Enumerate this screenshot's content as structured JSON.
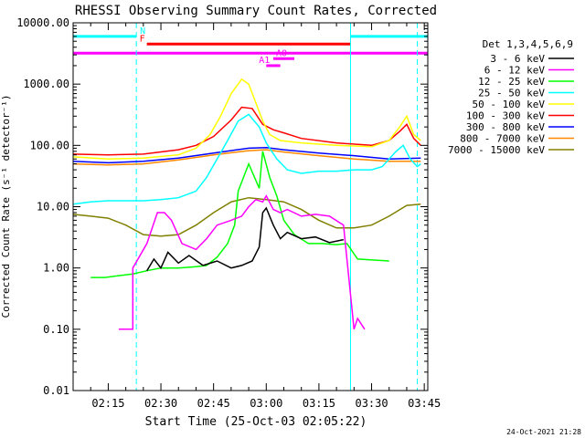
{
  "chart_data": {
    "type": "line",
    "title": "RHESSI Observing Summary Count Rates, Corrected",
    "xlabel": "Start Time (25-Oct-03 02:05:22)",
    "ylabel": "Corrected Count Rate (s⁻¹ detector⁻¹)",
    "yscale": "log",
    "ylim": [
      0.01,
      10000
    ],
    "xlim": [
      "02:05",
      "03:46"
    ],
    "x_ticks": [
      "02:15",
      "02:30",
      "02:45",
      "03:00",
      "03:15",
      "03:30",
      "03:45"
    ],
    "y_ticks": [
      "0.01",
      "0.10",
      "1.00",
      "10.00",
      "100.00",
      "1000.00",
      "10000.00"
    ],
    "legend_title": "Det 1,3,4,5,6,9",
    "legend_position": "right",
    "footer_date": "24-Oct-2021 21:28",
    "grid": false,
    "series": [
      {
        "name": "3 - 6 keV",
        "color": "#000000",
        "x": [
          "02:26",
          "02:28",
          "02:30",
          "02:32",
          "02:35",
          "02:38",
          "02:42",
          "02:46",
          "02:50",
          "02:53",
          "02:56",
          "02:58",
          "02:59",
          "03:00",
          "03:02",
          "03:04",
          "03:06",
          "03:10",
          "03:14",
          "03:18",
          "03:22"
        ],
        "values": [
          0.9,
          1.4,
          1.0,
          1.8,
          1.2,
          1.6,
          1.1,
          1.3,
          1.0,
          1.1,
          1.3,
          2.2,
          8.0,
          9.5,
          5.0,
          3.0,
          3.8,
          3.0,
          3.2,
          2.6,
          2.9
        ]
      },
      {
        "name": "6 - 12 keV",
        "color": "#ff00ff",
        "x": [
          "02:18",
          "02:22",
          "02:22",
          "02:26",
          "02:29",
          "02:31",
          "02:33",
          "02:36",
          "02:40",
          "02:43",
          "02:46",
          "02:50",
          "02:53",
          "02:55",
          "02:57",
          "02:59",
          "03:00",
          "03:02",
          "03:04",
          "03:06",
          "03:10",
          "03:14",
          "03:18",
          "03:22",
          "03:25",
          "03:26",
          "03:28"
        ],
        "values": [
          0.1,
          0.1,
          1.0,
          2.5,
          8.0,
          8.0,
          6.0,
          2.5,
          2.0,
          3.0,
          5.0,
          6.0,
          7.0,
          10.0,
          13.0,
          12.0,
          15.0,
          9.0,
          8.0,
          9.0,
          7.0,
          7.5,
          7.0,
          5.0,
          0.1,
          0.15,
          0.1
        ]
      },
      {
        "name": "12 - 25 keV",
        "color": "#00ff00",
        "x": [
          "02:10",
          "02:14",
          "02:18",
          "02:22",
          "02:26",
          "02:30",
          "02:35",
          "02:40",
          "02:43",
          "02:46",
          "02:49",
          "02:51",
          "02:52",
          "02:55",
          "02:58",
          "02:59",
          "03:01",
          "03:03",
          "03:05",
          "03:08",
          "03:12",
          "03:16",
          "03:20",
          "03:23",
          "03:26",
          "03:35"
        ],
        "values": [
          0.7,
          0.7,
          0.75,
          0.8,
          0.9,
          1.0,
          1.0,
          1.05,
          1.1,
          1.5,
          2.5,
          5.0,
          18.0,
          50.0,
          20.0,
          80.0,
          30.0,
          15.0,
          6.0,
          3.5,
          2.5,
          2.5,
          2.4,
          2.5,
          1.4,
          1.3
        ]
      },
      {
        "name": "25 - 50 keV",
        "color": "#00ffff",
        "x": [
          "02:05",
          "02:10",
          "02:15",
          "02:20",
          "02:25",
          "02:30",
          "02:35",
          "02:40",
          "02:43",
          "02:46",
          "02:49",
          "02:52",
          "02:55",
          "02:58",
          "03:00",
          "03:03",
          "03:06",
          "03:10",
          "03:15",
          "03:20",
          "03:25",
          "03:30",
          "03:33",
          "03:35",
          "03:37",
          "03:39",
          "03:41",
          "03:43",
          "03:44"
        ],
        "values": [
          11,
          12,
          12.5,
          12.5,
          12.5,
          13,
          14,
          18,
          30,
          60,
          120,
          250,
          320,
          200,
          110,
          60,
          40,
          35,
          38,
          38,
          40,
          40,
          45,
          60,
          80,
          100,
          60,
          45,
          50
        ]
      },
      {
        "name": "50 - 100 keV",
        "color": "#ffff00",
        "x": [
          "02:05",
          "02:15",
          "02:25",
          "02:35",
          "02:40",
          "02:44",
          "02:47",
          "02:50",
          "02:53",
          "02:55",
          "02:57",
          "02:59",
          "03:01",
          "03:04",
          "03:10",
          "03:20",
          "03:30",
          "03:35",
          "03:38",
          "03:40",
          "03:42",
          "03:44"
        ],
        "values": [
          65,
          60,
          62,
          70,
          90,
          150,
          300,
          700,
          1200,
          1000,
          500,
          250,
          150,
          120,
          110,
          100,
          95,
          120,
          200,
          300,
          150,
          120
        ]
      },
      {
        "name": "100 - 300 keV",
        "color": "#ff0000",
        "x": [
          "02:05",
          "02:15",
          "02:25",
          "02:35",
          "02:40",
          "02:45",
          "02:50",
          "02:53",
          "02:56",
          "02:59",
          "03:02",
          "03:05",
          "03:10",
          "03:20",
          "03:30",
          "03:35",
          "03:38",
          "03:40",
          "03:42",
          "03:44"
        ],
        "values": [
          72,
          70,
          72,
          85,
          100,
          140,
          260,
          420,
          400,
          220,
          180,
          160,
          130,
          110,
          100,
          120,
          170,
          220,
          130,
          100
        ]
      },
      {
        "name": "300 - 800 keV",
        "color": "#0000ff",
        "x": [
          "02:05",
          "02:15",
          "02:25",
          "02:35",
          "02:45",
          "02:55",
          "03:00",
          "03:05",
          "03:15",
          "03:25",
          "03:35",
          "03:44"
        ],
        "values": [
          55,
          52,
          55,
          62,
          75,
          90,
          92,
          85,
          75,
          68,
          60,
          62
        ]
      },
      {
        "name": "800 - 7000 keV",
        "color": "#ff8800",
        "x": [
          "02:05",
          "02:15",
          "02:25",
          "02:35",
          "02:45",
          "02:55",
          "03:00",
          "03:05",
          "03:15",
          "03:25",
          "03:35",
          "03:44"
        ],
        "values": [
          50,
          48,
          50,
          58,
          70,
          82,
          85,
          78,
          68,
          60,
          55,
          55
        ]
      },
      {
        "name": "7000 - 15000 keV",
        "color": "#808000",
        "x": [
          "02:05",
          "02:10",
          "02:15",
          "02:20",
          "02:25",
          "02:30",
          "02:35",
          "02:40",
          "02:45",
          "02:50",
          "02:55",
          "03:00",
          "03:05",
          "03:10",
          "03:15",
          "03:20",
          "03:25",
          "03:30",
          "03:35",
          "03:40",
          "03:44"
        ],
        "values": [
          7.5,
          7,
          6.5,
          5,
          3.5,
          3.3,
          3.5,
          5,
          8,
          12,
          14,
          13,
          12,
          9,
          6,
          4.5,
          4.5,
          5,
          7,
          10.5,
          11
        ]
      }
    ],
    "vertical_lines": [
      {
        "x": "02:23",
        "color": "#00ffff",
        "style": "dashed"
      },
      {
        "x": "03:24",
        "color": "#00ffff",
        "style": "solid"
      },
      {
        "x": "03:43",
        "color": "#00ffff",
        "style": "dashed"
      }
    ],
    "flag_bars": [
      {
        "label": "N",
        "color": "#00ffff",
        "segments": [
          [
            "02:05",
            "02:23"
          ],
          [
            "03:24",
            "03:46"
          ]
        ],
        "level": 6000
      },
      {
        "label": "F",
        "color": "#ff0000",
        "segments": [
          [
            "02:26",
            "03:24"
          ]
        ],
        "level": 4500
      },
      {
        "label": "",
        "color": "#ff00ff",
        "segments": [
          [
            "02:05",
            "03:46"
          ]
        ],
        "level": 3200
      },
      {
        "label": "A0",
        "color": "#ff00ff",
        "segments": [
          [
            "03:02",
            "03:08"
          ]
        ],
        "level": 2600
      },
      {
        "label": "A1",
        "color": "#ff00ff",
        "segments": [
          [
            "03:00",
            "03:04"
          ]
        ],
        "level": 2000
      }
    ]
  }
}
